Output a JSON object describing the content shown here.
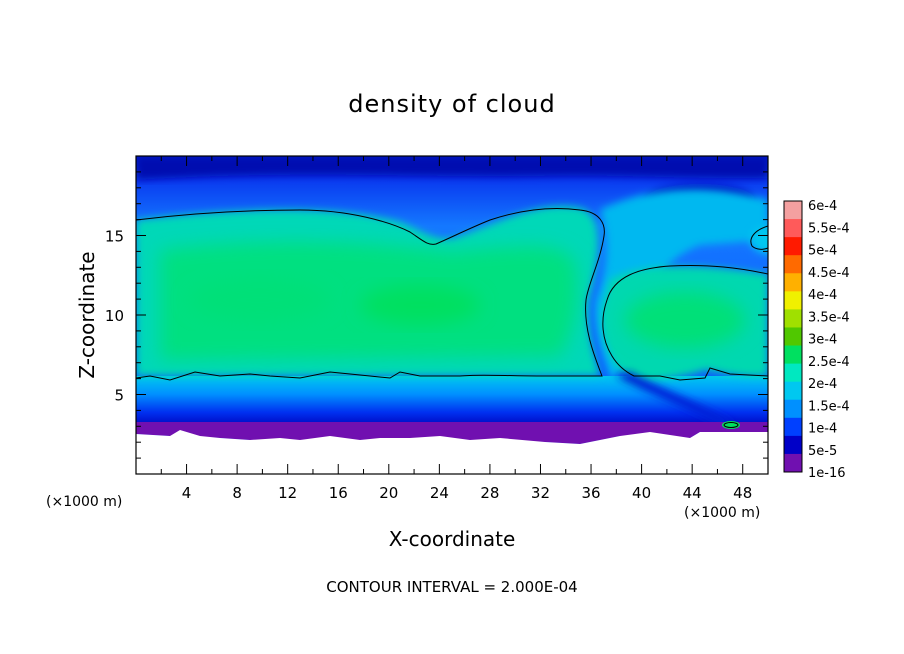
{
  "chart_data": {
    "type": "heatmap",
    "title": "density of cloud",
    "xlabel": "X-coordinate",
    "ylabel": "Z-coordinate",
    "x_unit": "(×1000 m)",
    "z_unit": "(×1000 m)",
    "x_ticks": [
      4,
      8,
      12,
      16,
      20,
      24,
      28,
      32,
      36,
      40,
      44,
      48
    ],
    "z_ticks": [
      5,
      10,
      15
    ],
    "xlim": [
      0,
      50
    ],
    "zlim": [
      0,
      20
    ],
    "contour_interval_text": "CONTOUR INTERVAL = 2.000E-04",
    "colorbar": {
      "labels": [
        "6e-4",
        "5.5e-4",
        "5e-4",
        "4.5e-4",
        "4e-4",
        "3.5e-4",
        "3e-4",
        "2.5e-4",
        "2e-4",
        "1.5e-4",
        "1e-4",
        "5e-5",
        "1e-16"
      ],
      "colors": [
        "#f4a0a0",
        "#ff5a5a",
        "#ff1a00",
        "#ff6a00",
        "#ffb000",
        "#f0f000",
        "#a0e000",
        "#50c800",
        "#00e060",
        "#00e8c0",
        "#00c8f0",
        "#0090ff",
        "#0040ff",
        "#0000c8",
        "#7010b0"
      ]
    },
    "features": {
      "main_cloud_z_range": [
        6,
        16.5
      ],
      "right_cloud_x_range": [
        37,
        50
      ],
      "right_cloud_z_range": [
        6.5,
        13
      ],
      "gap_x": 36.5,
      "cloud_free_below_z": 2.8
    }
  }
}
